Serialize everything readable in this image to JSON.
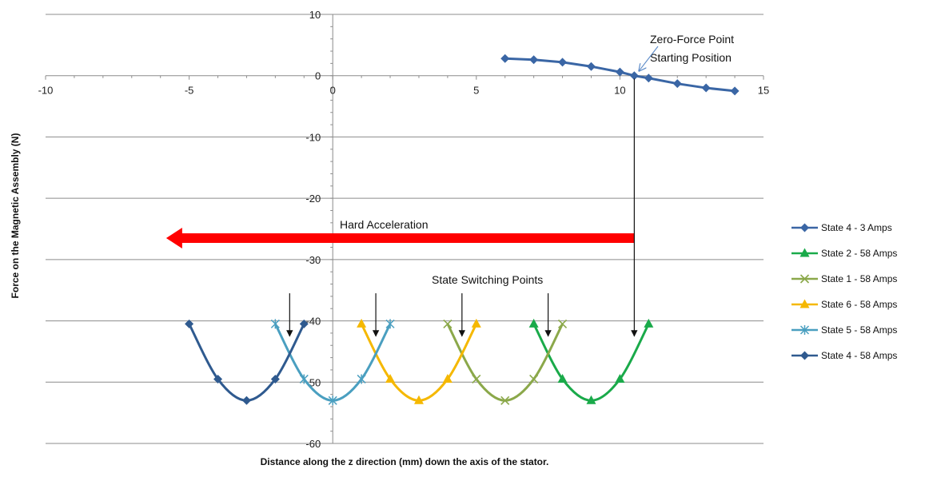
{
  "chart_data": {
    "type": "scatter",
    "xlabel": "Distance along the z direction (mm) down the axis of the stator.",
    "ylabel": "Force on the Magnetic Assembly (N)",
    "xlim": [
      -10,
      15
    ],
    "ylim": [
      -60,
      10
    ],
    "x_ticks": [
      -10,
      -5,
      0,
      5,
      10,
      15
    ],
    "y_ticks": [
      10,
      0,
      -10,
      -20,
      -30,
      -40,
      -50,
      -60
    ],
    "grid": "horizontal",
    "legend_position": "right",
    "series": [
      {
        "name": "State 4 - 3 Amps",
        "color": "#3a66a5",
        "marker": "diamond",
        "smooth": false,
        "x": [
          6,
          7,
          8,
          9,
          10,
          10.5,
          11,
          12,
          13,
          14
        ],
        "y": [
          2.8,
          2.6,
          2.2,
          1.5,
          0.6,
          0,
          -0.4,
          -1.3,
          -2.0,
          -2.5
        ]
      },
      {
        "name": "State 2 - 58 Amps",
        "color": "#1aaa4a",
        "marker": "triangle",
        "smooth": true,
        "x": [
          7,
          8,
          9,
          10,
          11
        ],
        "y": [
          -40.5,
          -49.5,
          -53,
          -49.5,
          -40.5
        ]
      },
      {
        "name": "State 1 - 58 Amps",
        "color": "#8ba84a",
        "marker": "x",
        "smooth": true,
        "x": [
          4,
          5,
          6,
          7,
          8
        ],
        "y": [
          -40.5,
          -49.5,
          -53,
          -49.5,
          -40.5
        ]
      },
      {
        "name": "State 6 - 58 Amps",
        "color": "#f5b800",
        "marker": "triangle",
        "smooth": true,
        "x": [
          1,
          2,
          3,
          4,
          5
        ],
        "y": [
          -40.5,
          -49.5,
          -53,
          -49.5,
          -40.5
        ]
      },
      {
        "name": "State 5 - 58 Amps",
        "color": "#4a9fc0",
        "marker": "star",
        "smooth": true,
        "x": [
          -2,
          -1,
          0,
          1,
          2
        ],
        "y": [
          -40.5,
          -49.5,
          -53,
          -49.5,
          -40.5
        ]
      },
      {
        "name": "State 4 - 58 Amps",
        "color": "#2f5a8f",
        "marker": "diamond",
        "smooth": true,
        "x": [
          -5,
          -4,
          -3,
          -2,
          -1
        ],
        "y": [
          -40.5,
          -49.5,
          -53,
          -49.5,
          -40.5
        ]
      }
    ],
    "annotations": {
      "zero_force_line1": "Zero-Force Point",
      "zero_force_line2": "Starting Position",
      "hard_acceleration": "Hard Acceleration",
      "switching_points": "State Switching Points"
    },
    "red_arrow": {
      "x_from": 10.5,
      "x_to": -5.8,
      "y": -26.5,
      "color": "#ff0000"
    },
    "switch_arrow_x": [
      -1.5,
      1.5,
      4.5,
      7.5
    ],
    "switch_arrow_y": [
      -35.5,
      -42.5
    ],
    "long_arrow": {
      "x": 10.5,
      "y_from": -0.5,
      "y_to": -42.5
    }
  }
}
